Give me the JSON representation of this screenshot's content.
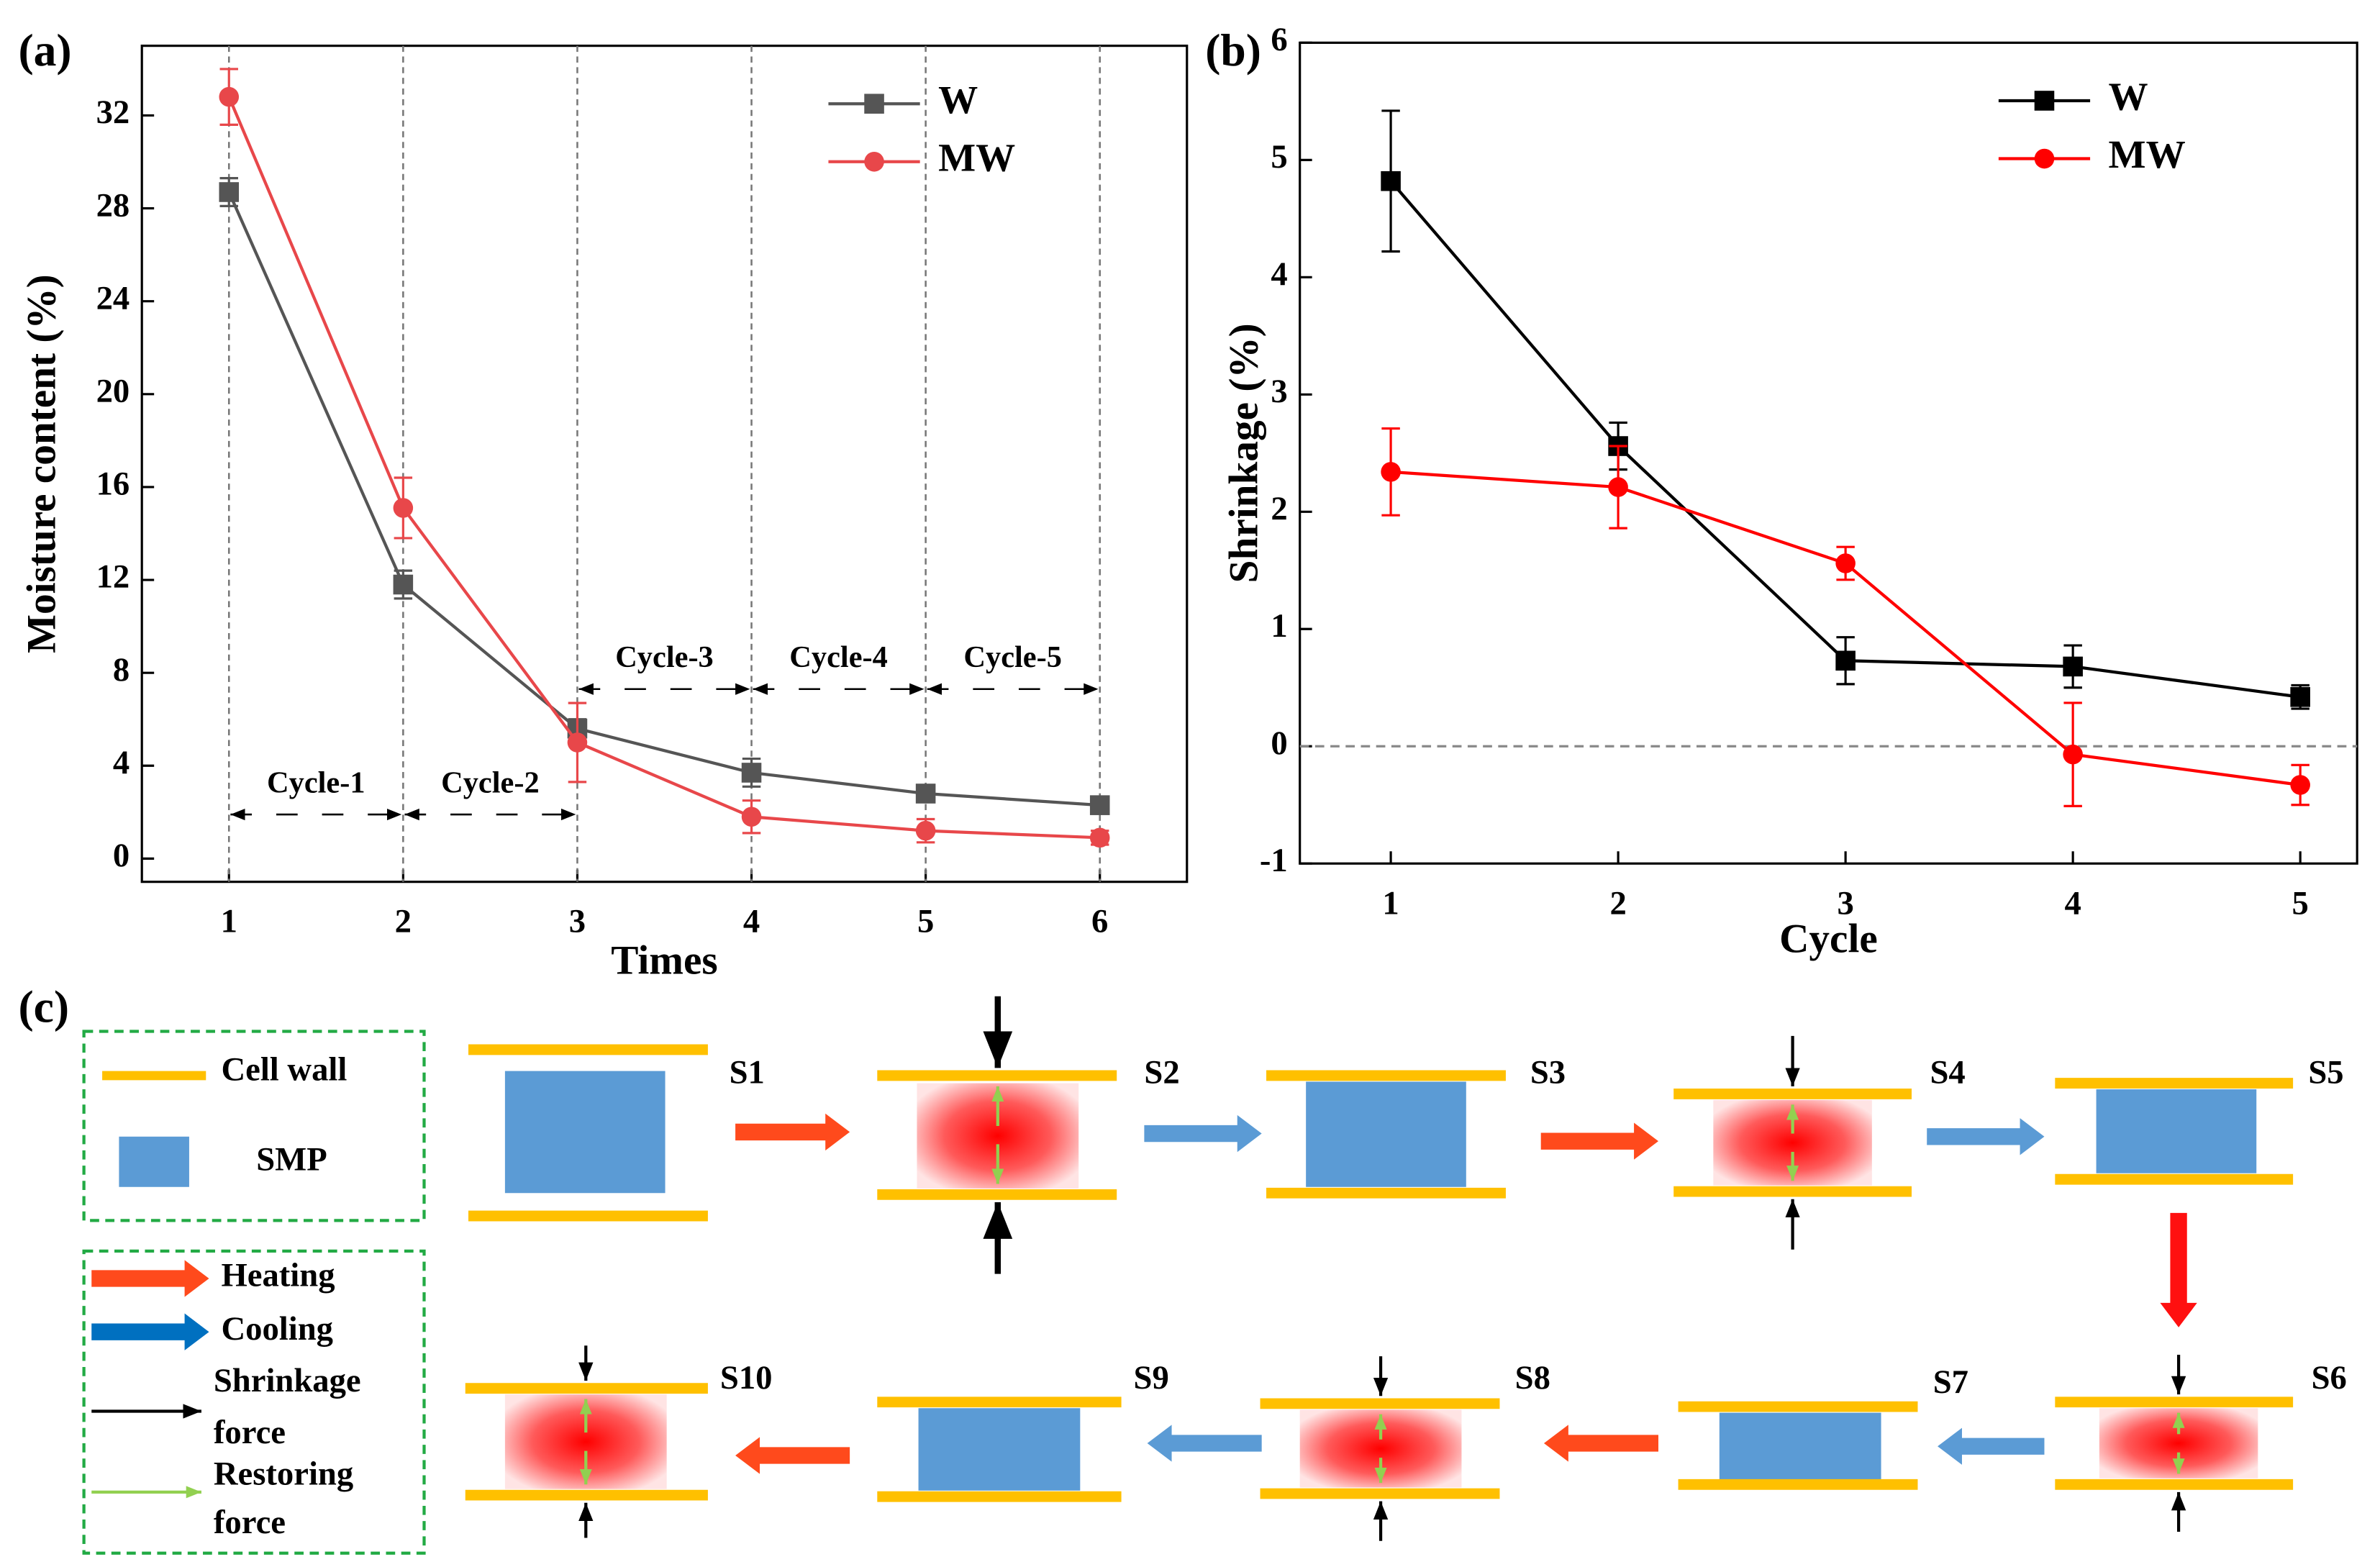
{
  "chart_data": [
    {
      "type": "line",
      "label": "(a)",
      "xlabel": "Times",
      "ylabel": "Moisture content (%)",
      "x": [
        1,
        2,
        3,
        4,
        5,
        6
      ],
      "xlim": [
        0.5,
        6.5
      ],
      "xticks": [
        1,
        2,
        3,
        4,
        5,
        6
      ],
      "ylim": [
        -1,
        35
      ],
      "yticks": [
        0,
        4,
        8,
        12,
        16,
        20,
        24,
        28,
        32
      ],
      "legend": "upper right",
      "vlines": true,
      "series": [
        {
          "name": "W",
          "color": "#555555",
          "marker": "square",
          "values": [
            28.7,
            11.8,
            5.6,
            3.7,
            2.8,
            2.3
          ],
          "errors": [
            0.6,
            0.6,
            0.4,
            0.6,
            0.3,
            0.3
          ]
        },
        {
          "name": "MW",
          "color": "#e8474a",
          "marker": "circle",
          "values": [
            32.8,
            15.1,
            5.0,
            1.8,
            1.2,
            0.9
          ],
          "errors": [
            1.2,
            1.3,
            1.7,
            0.7,
            0.5,
            0.3
          ]
        }
      ],
      "annotations": [
        {
          "text": "Cycle-1",
          "x": [
            1,
            2
          ],
          "y": 1.9
        },
        {
          "text": "Cycle-2",
          "x": [
            2,
            3
          ],
          "y": 1.9
        },
        {
          "text": "Cycle-3",
          "x": [
            3,
            4
          ],
          "y": 7.3
        },
        {
          "text": "Cycle-4",
          "x": [
            4,
            5
          ],
          "y": 7.3
        },
        {
          "text": "Cycle-5",
          "x": [
            5,
            6
          ],
          "y": 7.3
        }
      ]
    },
    {
      "type": "line",
      "label": "(b)",
      "xlabel": "Cycle",
      "ylabel": "Shrinkage (%)",
      "x": [
        1,
        2,
        3,
        4,
        5
      ],
      "xlim": [
        0.6,
        5.25
      ],
      "xticks": [
        1,
        2,
        3,
        4,
        5
      ],
      "ylim": [
        -1,
        6
      ],
      "yticks": [
        -1,
        0,
        1,
        2,
        3,
        4,
        5,
        6
      ],
      "legend": "upper right",
      "hline": 0,
      "series": [
        {
          "name": "W",
          "color": "#000000",
          "marker": "square",
          "values": [
            4.82,
            2.56,
            0.73,
            0.68,
            0.42
          ],
          "errors": [
            0.6,
            0.2,
            0.2,
            0.18,
            0.1
          ]
        },
        {
          "name": "MW",
          "color": "#ff0000",
          "marker": "circle",
          "values": [
            2.34,
            2.21,
            1.56,
            -0.07,
            -0.33
          ],
          "errors": [
            0.37,
            0.35,
            0.14,
            0.44,
            0.17
          ]
        }
      ]
    }
  ],
  "diagram": {
    "label": "(c)",
    "legend": {
      "material": [
        "Cell wall",
        "SMP"
      ],
      "process": [
        [
          "Heating"
        ],
        [
          "Cooling"
        ],
        [
          "Shrinkage",
          "force"
        ],
        [
          "Restoring",
          "force"
        ]
      ]
    },
    "states": [
      "S1",
      "S2",
      "S3",
      "S4",
      "S5",
      "S6",
      "S7",
      "S8",
      "S9",
      "S10"
    ]
  }
}
